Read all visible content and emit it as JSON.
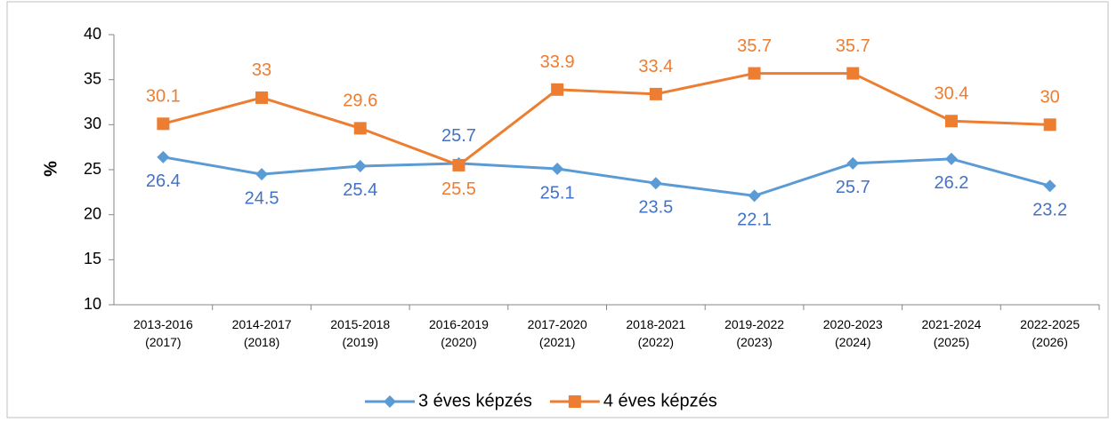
{
  "chart_data": {
    "type": "line",
    "categories": [
      "2013-2016\n(2017)",
      "2014-2017\n(2018)",
      "2015-2018\n(2019)",
      "2016-2019\n(2020)",
      "2017-2020\n(2021)",
      "2018-2021\n(2022)",
      "2019-2022\n(2023)",
      "2020-2023\n(2024)",
      "2021-2024\n(2025)",
      "2022-2025\n(2026)"
    ],
    "series": [
      {
        "name": "3 éves képzés",
        "color": "#5b9bd5",
        "label_color": "#4472c4",
        "marker": "diamond",
        "values": [
          26.4,
          24.5,
          25.4,
          25.7,
          25.1,
          23.5,
          22.1,
          25.7,
          26.2,
          23.2
        ]
      },
      {
        "name": "4 éves képzés",
        "color": "#ed7d31",
        "label_color": "#ed7d31",
        "marker": "square",
        "values": [
          30.1,
          33,
          29.6,
          25.5,
          33.9,
          33.4,
          35.7,
          35.7,
          30.4,
          30
        ]
      }
    ],
    "ylabel": "%",
    "ylim": [
      10,
      40
    ],
    "yticks": [
      10,
      15,
      20,
      25,
      30,
      35,
      40
    ],
    "grid": false,
    "legend": "bottom"
  }
}
